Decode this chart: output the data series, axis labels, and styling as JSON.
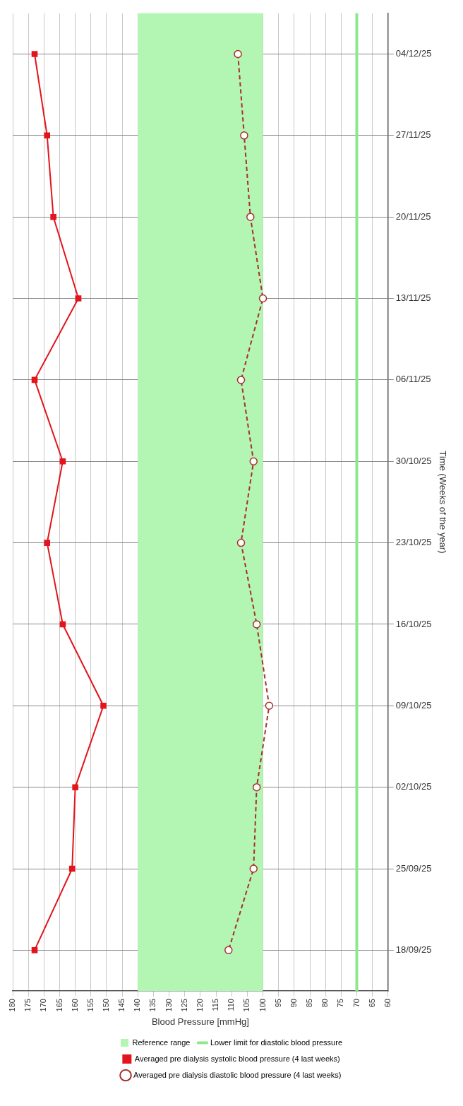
{
  "chart_data": {
    "type": "line",
    "orientation": "horizontal",
    "xlabel": "Blood Pressure [mmHg]",
    "ylabel": "Time (Weeks of the year)",
    "categories": [
      "04/12/25",
      "27/11/25",
      "20/11/25",
      "13/11/25",
      "06/11/25",
      "30/10/25",
      "23/10/25",
      "16/10/25",
      "09/10/25",
      "02/10/25",
      "25/09/25",
      "18/09/25"
    ],
    "series": [
      {
        "name": "Averaged pre dialysis systolic blood pressure (4 last weeks)",
        "color": "#e3141c",
        "marker": "square",
        "line_style": "solid",
        "values": [
          173,
          169,
          167,
          159,
          173,
          164,
          169,
          164,
          151,
          160,
          161,
          173
        ]
      },
      {
        "name": "Averaged pre dialysis diastolic blood pressure (4 last weeks)",
        "color": "#a8302a",
        "marker": "circle",
        "line_style": "dashed",
        "values": [
          108,
          106,
          104,
          100,
          107,
          103,
          107,
          102,
          98,
          102,
          103,
          111
        ]
      }
    ],
    "xlim": [
      180,
      60
    ],
    "xticks": [
      180,
      175,
      170,
      165,
      160,
      155,
      150,
      145,
      140,
      135,
      130,
      125,
      120,
      115,
      110,
      105,
      100,
      95,
      90,
      85,
      80,
      75,
      70,
      65,
      60
    ],
    "bands": [
      {
        "axis": "x",
        "from": 100,
        "to": 140,
        "label": "Reference range",
        "color": "#b3f5b3"
      }
    ],
    "ref_lines": [
      {
        "axis": "x",
        "value": 70,
        "label": "Lower limit for diastolic blood pressure",
        "color": "#8ee88e"
      }
    ],
    "grid": true,
    "legend": "bottom"
  }
}
